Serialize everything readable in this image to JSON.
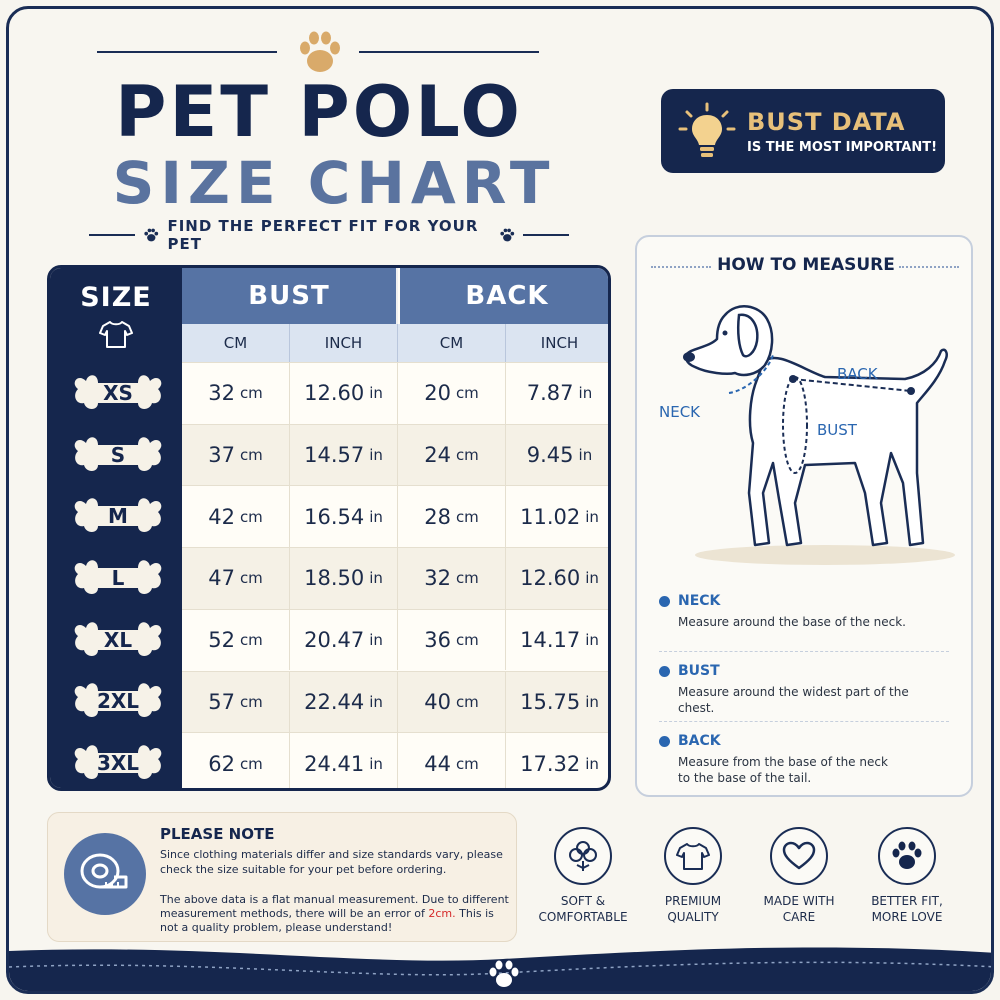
{
  "header": {
    "title_line1": "PET POLO",
    "title_line2": "SIZE CHART",
    "tagline": "FIND THE PERFECT FIT FOR YOUR PET"
  },
  "badge": {
    "title": "BUST DATA",
    "subtitle": "IS THE MOST IMPORTANT!"
  },
  "table": {
    "size_header": "SIZE",
    "groups": [
      "BUST",
      "BACK"
    ],
    "units": [
      "CM",
      "INCH",
      "CM",
      "INCH"
    ],
    "unit_cm": "cm",
    "unit_in": "in",
    "rows": [
      {
        "size": "XS",
        "bust_cm": "32",
        "bust_in": "12.60",
        "back_cm": "20",
        "back_in": "7.87"
      },
      {
        "size": "S",
        "bust_cm": "37",
        "bust_in": "14.57",
        "back_cm": "24",
        "back_in": "9.45"
      },
      {
        "size": "M",
        "bust_cm": "42",
        "bust_in": "16.54",
        "back_cm": "28",
        "back_in": "11.02"
      },
      {
        "size": "L",
        "bust_cm": "47",
        "bust_in": "18.50",
        "back_cm": "32",
        "back_in": "12.60"
      },
      {
        "size": "XL",
        "bust_cm": "52",
        "bust_in": "20.47",
        "back_cm": "36",
        "back_in": "14.17"
      },
      {
        "size": "2XL",
        "bust_cm": "57",
        "bust_in": "22.44",
        "back_cm": "40",
        "back_in": "15.75"
      },
      {
        "size": "3XL",
        "bust_cm": "62",
        "bust_in": "24.41",
        "back_cm": "44",
        "back_in": "17.32"
      }
    ]
  },
  "measure": {
    "title": "HOW TO MEASURE",
    "dog_labels": {
      "back": "BACK",
      "neck": "NECK",
      "bust": "BUST"
    },
    "items": [
      {
        "name": "NECK",
        "desc": "Measure around the base of the neck."
      },
      {
        "name": "BUST",
        "desc": "Measure around the widest part of the chest."
      },
      {
        "name": "BACK",
        "desc": "Measure  from the base of the neck to the base of the tail."
      }
    ]
  },
  "note": {
    "title": "PLEASE NOTE",
    "p1": "Since clothing materials differ and size standards vary, please check the size suitable for your pet before ordering.",
    "p2_a": "The above data is a flat manual measurement. Due to different measurement methods, there will be an error of ",
    "p2_red": "2cm.",
    "p2_b": " This is not a quality problem, please understand!"
  },
  "features": [
    {
      "icon": "cotton-icon",
      "label_1": "SOFT &",
      "label_2": "COMFORTABLE"
    },
    {
      "icon": "tshirt-icon",
      "label_1": "PREMIUM",
      "label_2": "QUALITY"
    },
    {
      "icon": "heart-icon",
      "label_1": "MADE WITH",
      "label_2": "CARE"
    },
    {
      "icon": "paw-icon",
      "label_1": "BETTER FIT,",
      "label_2": "MORE LOVE"
    }
  ],
  "colors": {
    "navy": "#15264d",
    "steel_blue": "#5673a4",
    "gold": "#e7c07a",
    "accent_blue": "#2a66b0",
    "warning_red": "#d52a2a"
  }
}
